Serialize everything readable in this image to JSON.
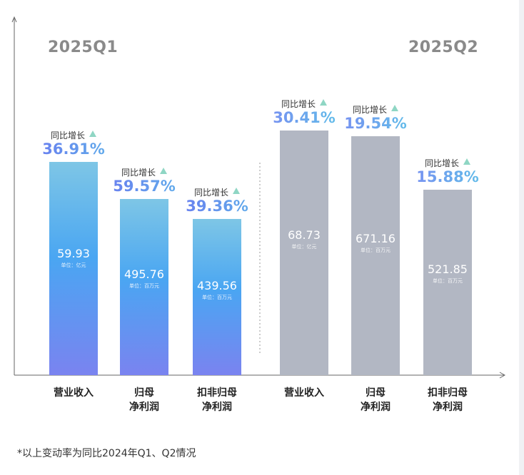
{
  "periods": [
    "2025Q1",
    "2025Q2"
  ],
  "growth_label": "同比增长",
  "footnote": "*以上变动率为同比2024年Q1、Q2情况",
  "colors": {
    "q1_gradient": [
      "#7ec6e6",
      "#4aa6f2",
      "#7a83f0"
    ],
    "q1_growth_text": [
      "#6a7cf0",
      "#5fb0ea"
    ],
    "q2_bar": "#b2b7c3",
    "q2_growth_text": [
      "#7a8cf2",
      "#5ec2e8"
    ],
    "arrow": "#8fd6c4",
    "axis": "#666666"
  },
  "chart_data": {
    "type": "bar",
    "title": "",
    "xlabel": "",
    "ylabel": "",
    "groups": [
      {
        "period": "2025Q1",
        "bars": [
          {
            "category": "营业收入",
            "value": 59.93,
            "value_label": "59.93",
            "unit": "单位：亿元",
            "growth": "36.91%"
          },
          {
            "category": "归母\n净利润",
            "value": 495.76,
            "value_label": "495.76",
            "unit": "单位：百万元",
            "growth": "59.57%"
          },
          {
            "category": "扣非归母\n净利润",
            "value": 439.56,
            "value_label": "439.56",
            "unit": "单位：百万元",
            "growth": "39.36%"
          }
        ]
      },
      {
        "period": "2025Q2",
        "bars": [
          {
            "category": "营业收入",
            "value": 68.73,
            "value_label": "68.73",
            "unit": "单位：亿元",
            "growth": "30.41%"
          },
          {
            "category": "归母\n净利润",
            "value": 671.16,
            "value_label": "671.16",
            "unit": "单位：百万元",
            "growth": "19.54%"
          },
          {
            "category": "扣非归母\n净利润",
            "value": 521.85,
            "value_label": "521.85",
            "unit": "单位：百万元",
            "growth": "15.88%"
          }
        ]
      }
    ]
  }
}
